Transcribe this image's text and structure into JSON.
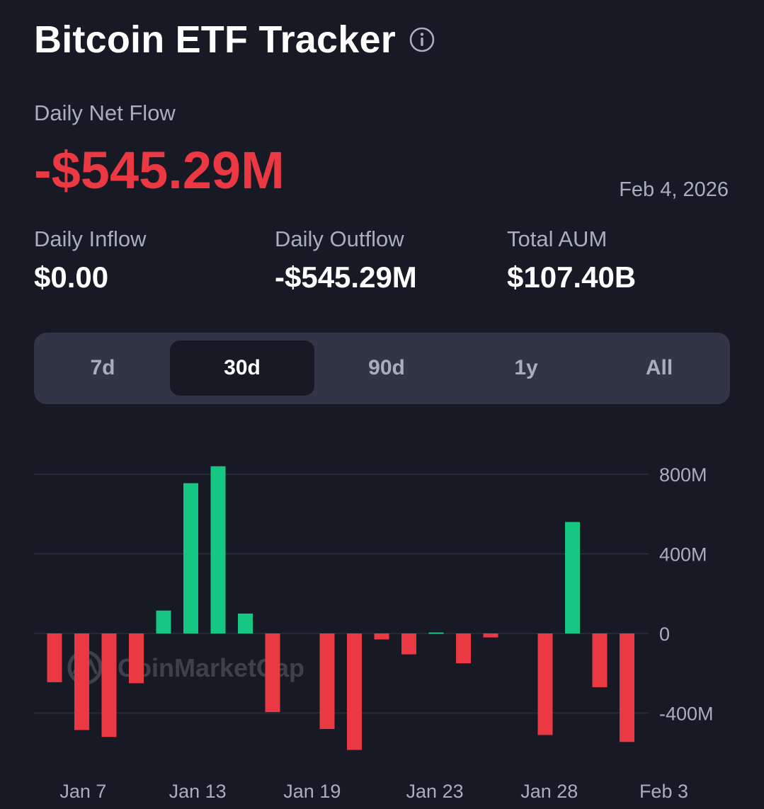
{
  "header": {
    "title": "Bitcoin ETF Tracker",
    "info_icon": "info-circle-icon"
  },
  "summary": {
    "net_flow_label": "Daily Net Flow",
    "net_flow_value": "-$545.29M",
    "date": "Feb 4, 2026",
    "inflow_label": "Daily Inflow",
    "inflow_value": "$0.00",
    "outflow_label": "Daily Outflow",
    "outflow_value": "-$545.29M",
    "aum_label": "Total AUM",
    "aum_value": "$107.40B"
  },
  "ranges": {
    "options": [
      "7d",
      "30d",
      "90d",
      "1y",
      "All"
    ],
    "selected": "30d"
  },
  "colors": {
    "background": "#171924",
    "positive": "#16c784",
    "negative": "#ea3943",
    "muted_text": "#a8aebf",
    "panel": "#323546"
  },
  "chart_data": {
    "type": "bar",
    "title": "",
    "xlabel": "",
    "ylabel": "",
    "ylim": [
      -600,
      1000
    ],
    "y_ticks": [
      {
        "value": 800,
        "label": "800M"
      },
      {
        "value": 400,
        "label": "400M"
      },
      {
        "value": 0,
        "label": "0"
      },
      {
        "value": -400,
        "label": "-400M"
      }
    ],
    "x_tick_labels": [
      {
        "index": 1,
        "label": "Jan 7"
      },
      {
        "index": 5,
        "label": "Jan 13"
      },
      {
        "index": 9,
        "label": "Jan 19"
      },
      {
        "index": 13,
        "label": "Jan 23"
      },
      {
        "index": 17,
        "label": "Jan 28"
      },
      {
        "index": 21,
        "label": "Feb 3"
      }
    ],
    "unit": "M USD",
    "values": [
      -245,
      -485,
      -520,
      -250,
      115,
      755,
      840,
      100,
      -395,
      -480,
      -585,
      -30,
      -105,
      5,
      -150,
      -20,
      -510,
      560,
      -270,
      -545
    ],
    "bar_index_positions": [
      0,
      1,
      2,
      3,
      4,
      5,
      6,
      7,
      8,
      10,
      11,
      12,
      13,
      14,
      15,
      16,
      18,
      19,
      20,
      21
    ],
    "watermark": "CoinMarketCap"
  }
}
